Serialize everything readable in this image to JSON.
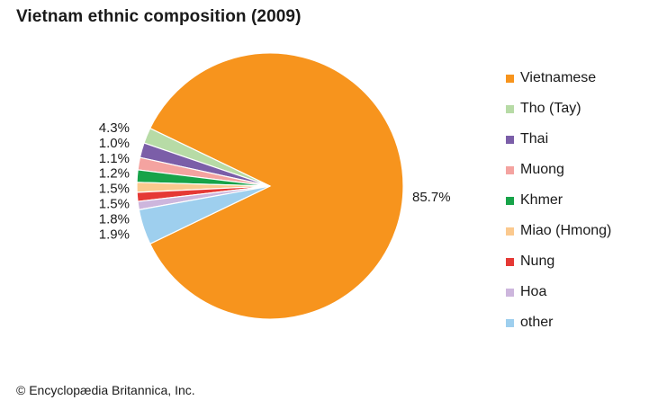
{
  "chart_data": {
    "type": "pie",
    "title": "Vietnam ethnic composition (2009)",
    "slices": [
      {
        "label": "Vietnamese",
        "value": 85.7,
        "value_label": "85.7%",
        "color": "#f7941d"
      },
      {
        "label": "Tho (Tay)",
        "value": 1.9,
        "value_label": "1.9%",
        "color": "#b7dba6"
      },
      {
        "label": "Thai",
        "value": 1.8,
        "value_label": "1.8%",
        "color": "#7b5ea8"
      },
      {
        "label": "Muong",
        "value": 1.5,
        "value_label": "1.5%",
        "color": "#f4a3a0"
      },
      {
        "label": "Khmer",
        "value": 1.5,
        "value_label": "1.5%",
        "color": "#17a349"
      },
      {
        "label": "Miao (Hmong)",
        "value": 1.2,
        "value_label": "1.2%",
        "color": "#fbc98e"
      },
      {
        "label": "Nung",
        "value": 1.1,
        "value_label": "1.1%",
        "color": "#e53935"
      },
      {
        "label": "Hoa",
        "value": 1.0,
        "value_label": "1.0%",
        "color": "#cdb6dd"
      },
      {
        "label": "other",
        "value": 4.3,
        "value_label": "4.3%",
        "color": "#9ecfee"
      }
    ],
    "legend_position": "right"
  },
  "credit": "© Encyclopædia Britannica, Inc."
}
